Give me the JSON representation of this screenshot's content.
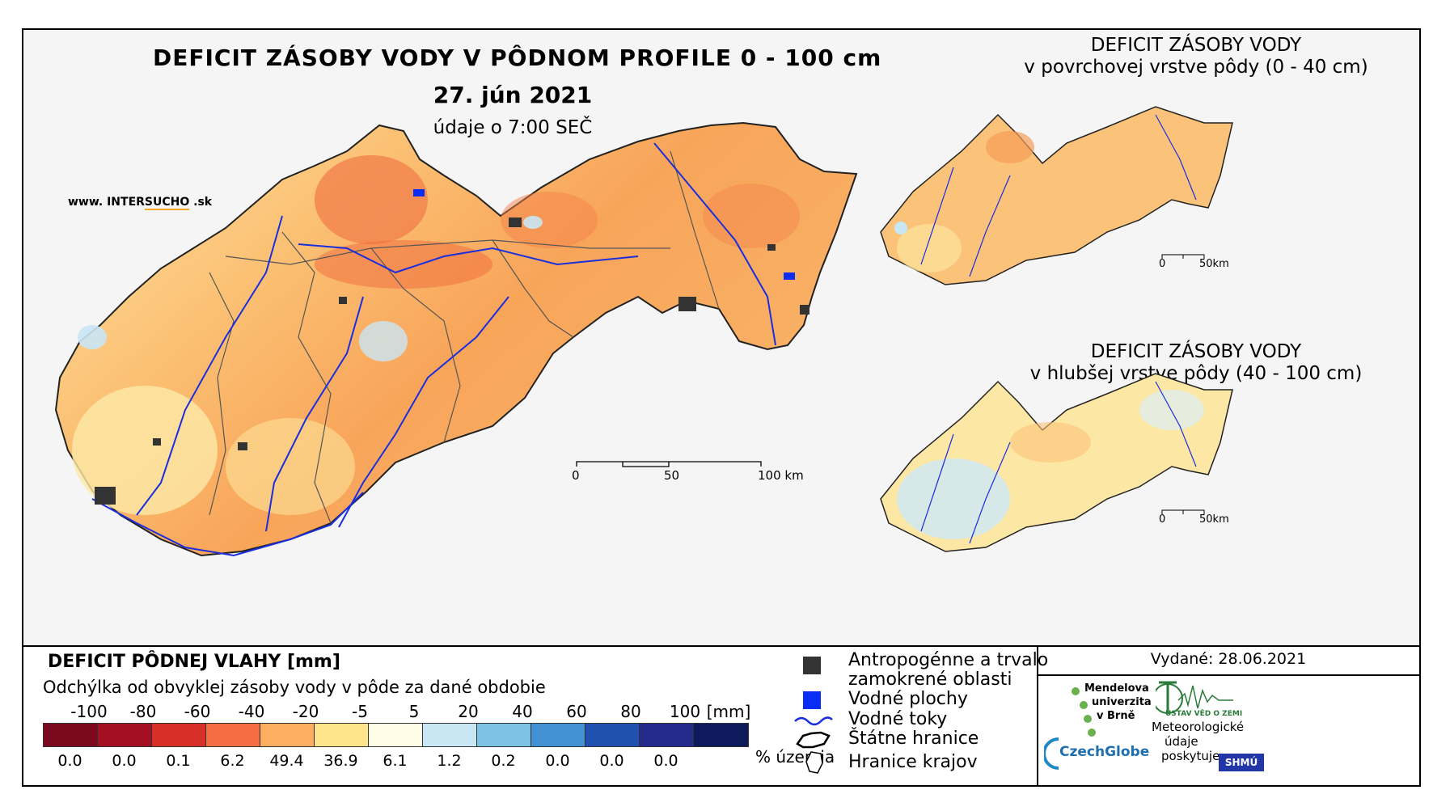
{
  "header": {
    "title": "DEFICIT ZÁSOBY VODY V PÔDNOM PROFILE 0 - 100 cm",
    "date": "27. jún 2021",
    "time": "údaje o 7:00 SEČ",
    "website_prefix": "www. INTER",
    "website_mid": "SUCHO",
    "website_suffix": " .sk"
  },
  "inset_top": {
    "line1": "DEFICIT ZÁSOBY VODY",
    "line2": "v povrchovej vrstve pôdy (0 - 40 cm)",
    "scale_0": "0",
    "scale_50": "50km"
  },
  "inset_bottom": {
    "line1": "DEFICIT ZÁSOBY VODY",
    "line2": "v hlubšej vrstve pôdy (40 - 100 cm)",
    "scale_0": "0",
    "scale_50": "50km"
  },
  "main_scale": {
    "l0": "0",
    "l50": "50",
    "l100": "100 km"
  },
  "legend": {
    "title": "DEFICIT PÔDNEJ VLAHY [mm]",
    "subtitle": "Odchýlka od obvyklej zásoby vody v pôde za dané obdobie",
    "breaks": [
      "-100",
      "-80",
      "-60",
      "-40",
      "-20",
      "-5",
      "5",
      "20",
      "40",
      "60",
      "80",
      "100"
    ],
    "unit": "[mm]",
    "colors": [
      "#7b0a1e",
      "#a50f23",
      "#d73027",
      "#f46d43",
      "#fdae61",
      "#fee48b",
      "#fffde6",
      "#c9e6f5",
      "#7ec3e6",
      "#4292d3",
      "#2050b0",
      "#232a8c",
      "#0d1a5c"
    ],
    "percentages": [
      "0.0",
      "0.0",
      "0.1",
      "6.2",
      "49.4",
      "36.9",
      "6.1",
      "1.2",
      "0.2",
      "0.0",
      "0.0",
      "0.0"
    ],
    "pct_unit": "% územia"
  },
  "symbols": {
    "anthro_1": "Antropogénne a trvalo",
    "anthro_2": "zamokrené oblasti",
    "water": "Vodné plochy",
    "rivers": "Vodné toky",
    "border": "Štátne hranice",
    "regions": "Hranice krajov"
  },
  "issued": "Vydané: 28.06.2021",
  "logos": {
    "mendel_1": "Mendelova",
    "mendel_2": "univerzita",
    "mendel_3": "v Brně",
    "czechglobe": "CzechGlobe",
    "uvgz": "ÚSTAV VĚD O ZEMI",
    "meteo_1": "Meteorologické",
    "meteo_2": "údaje",
    "meteo_3": "poskytuje:",
    "shmu": "SHMÚ"
  }
}
